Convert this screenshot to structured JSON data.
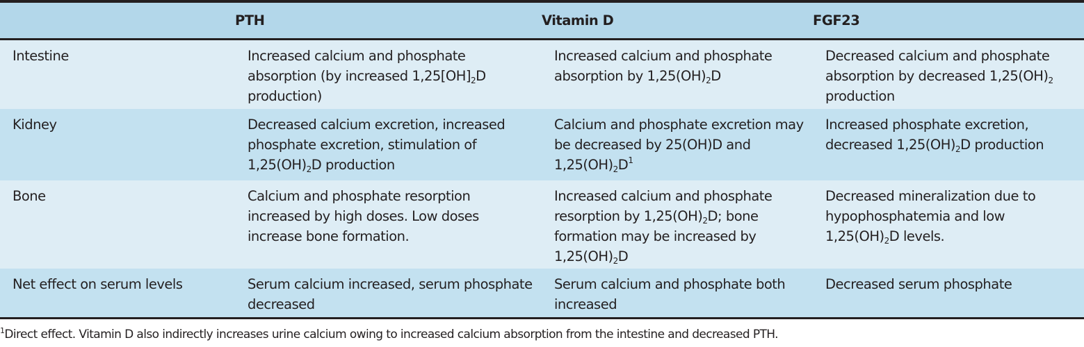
{
  "table": {
    "headers": [
      "",
      "PTH",
      "Vitamin D",
      "FGF23"
    ],
    "rows": [
      {
        "label": "Intestine",
        "shade": "light",
        "cells": [
          [
            [
              "Increased calcium and phosphate absorption (by increased 1,25[OH]"
            ],
            [
              "2",
              "sub"
            ],
            [
              "D production)"
            ]
          ],
          [
            [
              "Increased calcium and phosphate absorption by 1,25(OH)"
            ],
            [
              "2",
              "sub"
            ],
            [
              "D"
            ]
          ],
          [
            [
              "Decreased calcium and phosphate absorption by decreased 1,25(OH)"
            ],
            [
              "2",
              "sub"
            ],
            [
              " production"
            ]
          ]
        ]
      },
      {
        "label": "Kidney",
        "shade": "dark",
        "cells": [
          [
            [
              "Decreased calcium excretion, increased phosphate excretion, stimulation of 1,25(OH)"
            ],
            [
              "2",
              "sub"
            ],
            [
              "D production"
            ]
          ],
          [
            [
              "Calcium and phosphate excretion may be decreased by 25(OH)D and 1,25(OH)"
            ],
            [
              "2",
              "sub"
            ],
            [
              "D"
            ],
            [
              "1",
              "sup"
            ]
          ],
          [
            [
              "Increased phosphate excretion, decreased 1,25(OH)"
            ],
            [
              "2",
              "sub"
            ],
            [
              "D production"
            ]
          ]
        ]
      },
      {
        "label": "Bone",
        "shade": "light",
        "cells": [
          [
            [
              "Calcium and phosphate resorption increased by high doses. Low doses increase bone formation."
            ]
          ],
          [
            [
              "Increased calcium and phosphate resorption by 1,25(OH)"
            ],
            [
              "2",
              "sub"
            ],
            [
              "D; bone formation may be increased by 1,25(OH)"
            ],
            [
              "2",
              "sub"
            ],
            [
              "D"
            ]
          ],
          [
            [
              "Decreased mineralization due to hypophosphatemia and low 1,25(OH)"
            ],
            [
              "2",
              "sub"
            ],
            [
              "D levels."
            ]
          ]
        ]
      },
      {
        "label": "Net effect on serum levels",
        "shade": "dark",
        "cells": [
          [
            [
              "Serum calcium increased, serum phosphate decreased"
            ]
          ],
          [
            [
              "Serum calcium and phosphate both increased"
            ]
          ],
          [
            [
              "Decreased serum phosphate"
            ]
          ]
        ]
      }
    ]
  },
  "footnote": {
    "marker": "1",
    "text": "Direct effect. Vitamin D also indirectly increases urine calcium owing to increased calcium absorption from the intestine and decreased PTH."
  },
  "colors": {
    "header_bg": "#b3d7ea",
    "row_light": "#deedf5",
    "row_dark": "#c3e1f0",
    "rule": "#231f20"
  }
}
